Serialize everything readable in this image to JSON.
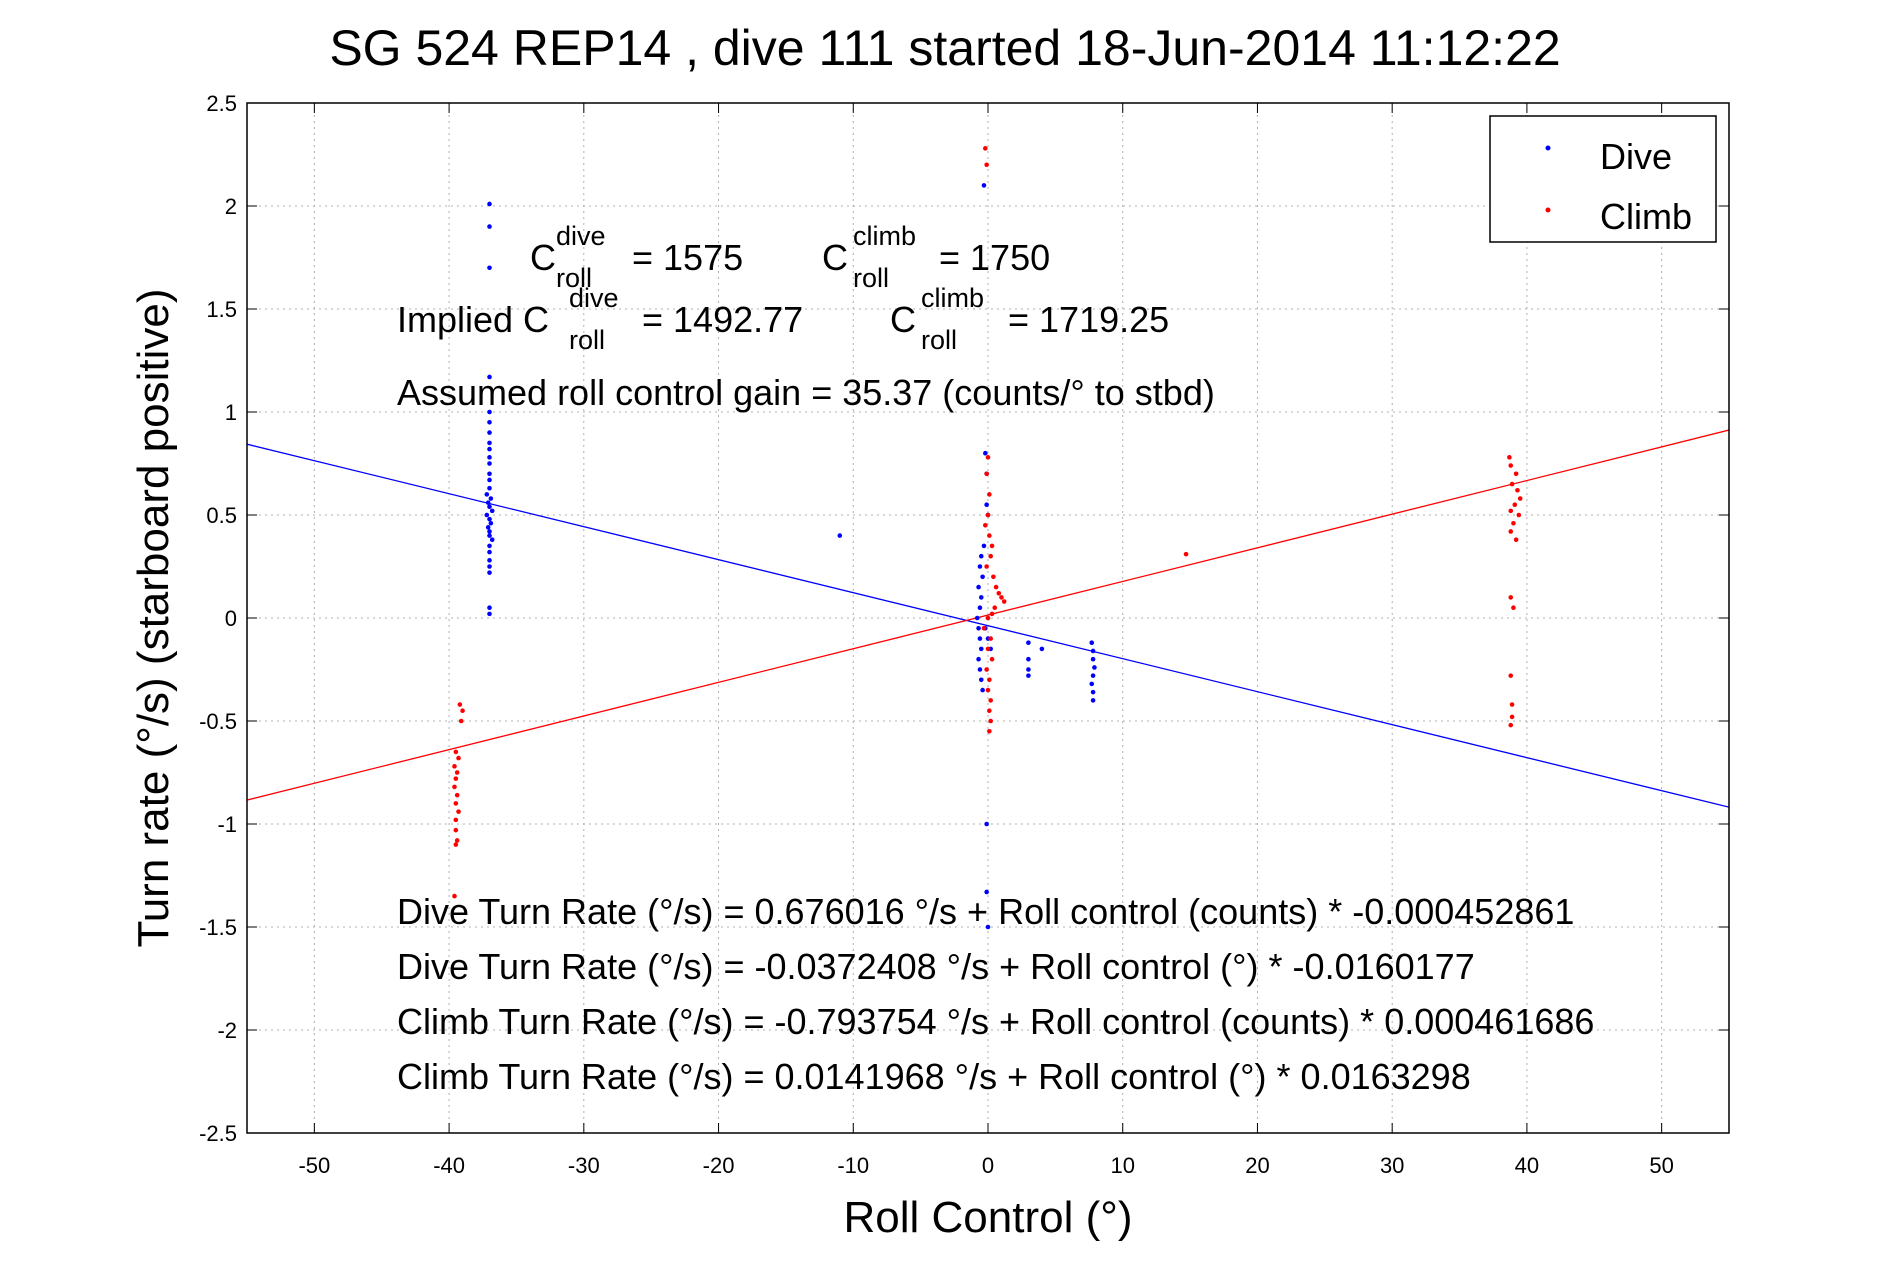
{
  "chart_data": {
    "type": "scatter",
    "title": "SG 524   REP14  , dive 111 started 18-Jun-2014 11:12:22",
    "xlabel": "Roll Control (°)",
    "ylabel": "Turn rate (°/s)  (starboard positive)",
    "xlim": [
      -55,
      55
    ],
    "ylim": [
      -2.5,
      2.5
    ],
    "x_ticks": [
      -50,
      -40,
      -30,
      -20,
      -10,
      0,
      10,
      20,
      30,
      40,
      50
    ],
    "y_ticks": [
      2.5,
      2,
      1.5,
      1,
      0.5,
      0,
      -0.5,
      -1,
      -1.5,
      -2,
      -2.5
    ],
    "grid": true,
    "legend_position": "top-right",
    "colors": {
      "dive": "#0000ff",
      "climb": "#ff0000"
    },
    "series": [
      {
        "name": "Dive",
        "color": "#0000ff",
        "marker": "dot",
        "points": [
          [
            -37,
            2.01
          ],
          [
            -37,
            1.9
          ],
          [
            -37,
            1.7
          ],
          [
            -37,
            1.17
          ],
          [
            -37,
            1.0
          ],
          [
            -37,
            0.95
          ],
          [
            -37,
            0.9
          ],
          [
            -37,
            0.85
          ],
          [
            -37,
            0.82
          ],
          [
            -37,
            0.78
          ],
          [
            -37,
            0.75
          ],
          [
            -37,
            0.7
          ],
          [
            -37,
            0.67
          ],
          [
            -37,
            0.63
          ],
          [
            -37.2,
            0.6
          ],
          [
            -36.9,
            0.58
          ],
          [
            -37.1,
            0.56
          ],
          [
            -37,
            0.54
          ],
          [
            -36.8,
            0.52
          ],
          [
            -37.2,
            0.5
          ],
          [
            -37,
            0.48
          ],
          [
            -36.9,
            0.46
          ],
          [
            -37.1,
            0.44
          ],
          [
            -37,
            0.42
          ],
          [
            -37,
            0.4
          ],
          [
            -36.8,
            0.38
          ],
          [
            -37,
            0.35
          ],
          [
            -37,
            0.32
          ],
          [
            -37,
            0.28
          ],
          [
            -37,
            0.25
          ],
          [
            -37,
            0.22
          ],
          [
            -37,
            0.05
          ],
          [
            -37,
            0.02
          ],
          [
            -11,
            0.4
          ],
          [
            -0.3,
            2.1
          ],
          [
            -0.2,
            0.8
          ],
          [
            -0.1,
            0.7
          ],
          [
            -0.1,
            0.55
          ],
          [
            0,
            0.5
          ],
          [
            -0.3,
            0.35
          ],
          [
            -0.5,
            0.3
          ],
          [
            -0.6,
            0.25
          ],
          [
            -0.4,
            0.2
          ],
          [
            -0.7,
            0.15
          ],
          [
            -0.5,
            0.1
          ],
          [
            -0.6,
            0.05
          ],
          [
            -0.8,
            0.0
          ],
          [
            -0.7,
            -0.05
          ],
          [
            -0.6,
            -0.1
          ],
          [
            -0.5,
            -0.15
          ],
          [
            -0.7,
            -0.2
          ],
          [
            -0.6,
            -0.25
          ],
          [
            -0.5,
            -0.3
          ],
          [
            -0.4,
            -0.35
          ],
          [
            -0.2,
            -0.05
          ],
          [
            0,
            -0.1
          ],
          [
            0.2,
            -0.15
          ],
          [
            -0.1,
            -1.0
          ],
          [
            -0.1,
            -1.33
          ],
          [
            0,
            -1.5
          ],
          [
            3,
            -0.12
          ],
          [
            3,
            -0.2
          ],
          [
            3,
            -0.25
          ],
          [
            3,
            -0.28
          ],
          [
            4,
            -0.15
          ],
          [
            7.7,
            -0.12
          ],
          [
            7.8,
            -0.16
          ],
          [
            7.8,
            -0.2
          ],
          [
            7.9,
            -0.24
          ],
          [
            7.8,
            -0.28
          ],
          [
            7.7,
            -0.32
          ],
          [
            7.8,
            -0.36
          ],
          [
            7.8,
            -0.4
          ]
        ],
        "fit": {
          "intercept": -0.0372408,
          "slope": -0.0160177
        }
      },
      {
        "name": "Climb",
        "color": "#ff0000",
        "marker": "dot",
        "points": [
          [
            -0.2,
            2.28
          ],
          [
            -0.1,
            2.2
          ],
          [
            0,
            0.78
          ],
          [
            -0.1,
            0.7
          ],
          [
            0.1,
            0.6
          ],
          [
            0,
            0.5
          ],
          [
            -0.2,
            0.45
          ],
          [
            0.1,
            0.4
          ],
          [
            0.3,
            0.35
          ],
          [
            0.2,
            0.3
          ],
          [
            -0.1,
            0.25
          ],
          [
            0.4,
            0.2
          ],
          [
            0.6,
            0.15
          ],
          [
            0.8,
            0.12
          ],
          [
            1,
            0.1
          ],
          [
            1.2,
            0.08
          ],
          [
            0.5,
            0.05
          ],
          [
            0.3,
            0.02
          ],
          [
            0,
            0.0
          ],
          [
            -0.3,
            -0.05
          ],
          [
            0.2,
            -0.1
          ],
          [
            0,
            -0.15
          ],
          [
            0.3,
            -0.2
          ],
          [
            -0.1,
            -0.25
          ],
          [
            0.1,
            -0.3
          ],
          [
            0,
            -0.35
          ],
          [
            0.2,
            -0.4
          ],
          [
            0.1,
            -0.45
          ],
          [
            0.2,
            -0.5
          ],
          [
            0.1,
            -0.55
          ],
          [
            -39.2,
            -0.42
          ],
          [
            -39,
            -0.45
          ],
          [
            -39.1,
            -0.5
          ],
          [
            -39.5,
            -0.65
          ],
          [
            -39.3,
            -0.68
          ],
          [
            -39.6,
            -0.72
          ],
          [
            -39.4,
            -0.75
          ],
          [
            -39.5,
            -0.78
          ],
          [
            -39.6,
            -0.82
          ],
          [
            -39.4,
            -0.86
          ],
          [
            -39.5,
            -0.9
          ],
          [
            -39.3,
            -0.94
          ],
          [
            -39.5,
            -0.98
          ],
          [
            -39.5,
            -1.03
          ],
          [
            -39.4,
            -1.08
          ],
          [
            -39.5,
            -1.1
          ],
          [
            -39.6,
            -1.35
          ],
          [
            14.7,
            0.31
          ],
          [
            38.7,
            0.78
          ],
          [
            38.8,
            0.74
          ],
          [
            39.2,
            0.7
          ],
          [
            38.9,
            0.65
          ],
          [
            39.3,
            0.62
          ],
          [
            39.5,
            0.58
          ],
          [
            39.1,
            0.55
          ],
          [
            38.8,
            0.52
          ],
          [
            39.4,
            0.5
          ],
          [
            39.0,
            0.46
          ],
          [
            38.8,
            0.42
          ],
          [
            39.2,
            0.38
          ],
          [
            38.8,
            0.1
          ],
          [
            39.0,
            0.05
          ],
          [
            38.8,
            -0.28
          ],
          [
            38.9,
            -0.42
          ],
          [
            38.9,
            -0.48
          ],
          [
            38.8,
            -0.52
          ]
        ],
        "fit": {
          "intercept": 0.0141968,
          "slope": 0.0163298
        }
      }
    ],
    "annotations": {
      "c_dive_label": "C",
      "c_dive_sup": "dive",
      "c_dive_sub": "roll",
      "c_dive_value": "= 1575",
      "c_climb_label": "C",
      "c_climb_sup": "climb",
      "c_climb_sub": "roll",
      "c_climb_value": "= 1750",
      "implied_prefix": "Implied C",
      "implied_dive_sup": "dive",
      "implied_dive_sub": "roll",
      "implied_dive_value": "= 1492.77",
      "implied_climb_label": "C",
      "implied_climb_sup": "climb",
      "implied_climb_sub": "roll",
      "implied_climb_value": "= 1719.25",
      "gain": "Assumed roll control gain = 35.37 (counts/° to stbd)",
      "eq1": "Dive Turn Rate (°/s) = 0.676016 °/s + Roll control (counts) * -0.000452861",
      "eq2": "Dive Turn Rate (°/s) = -0.0372408 °/s + Roll control (°) * -0.0160177",
      "eq3": "Climb Turn Rate (°/s) = -0.793754 °/s + Roll control (counts) * 0.000461686",
      "eq4": "Climb Turn Rate (°/s) = 0.0141968 °/s + Roll control (°) * 0.0163298"
    }
  }
}
